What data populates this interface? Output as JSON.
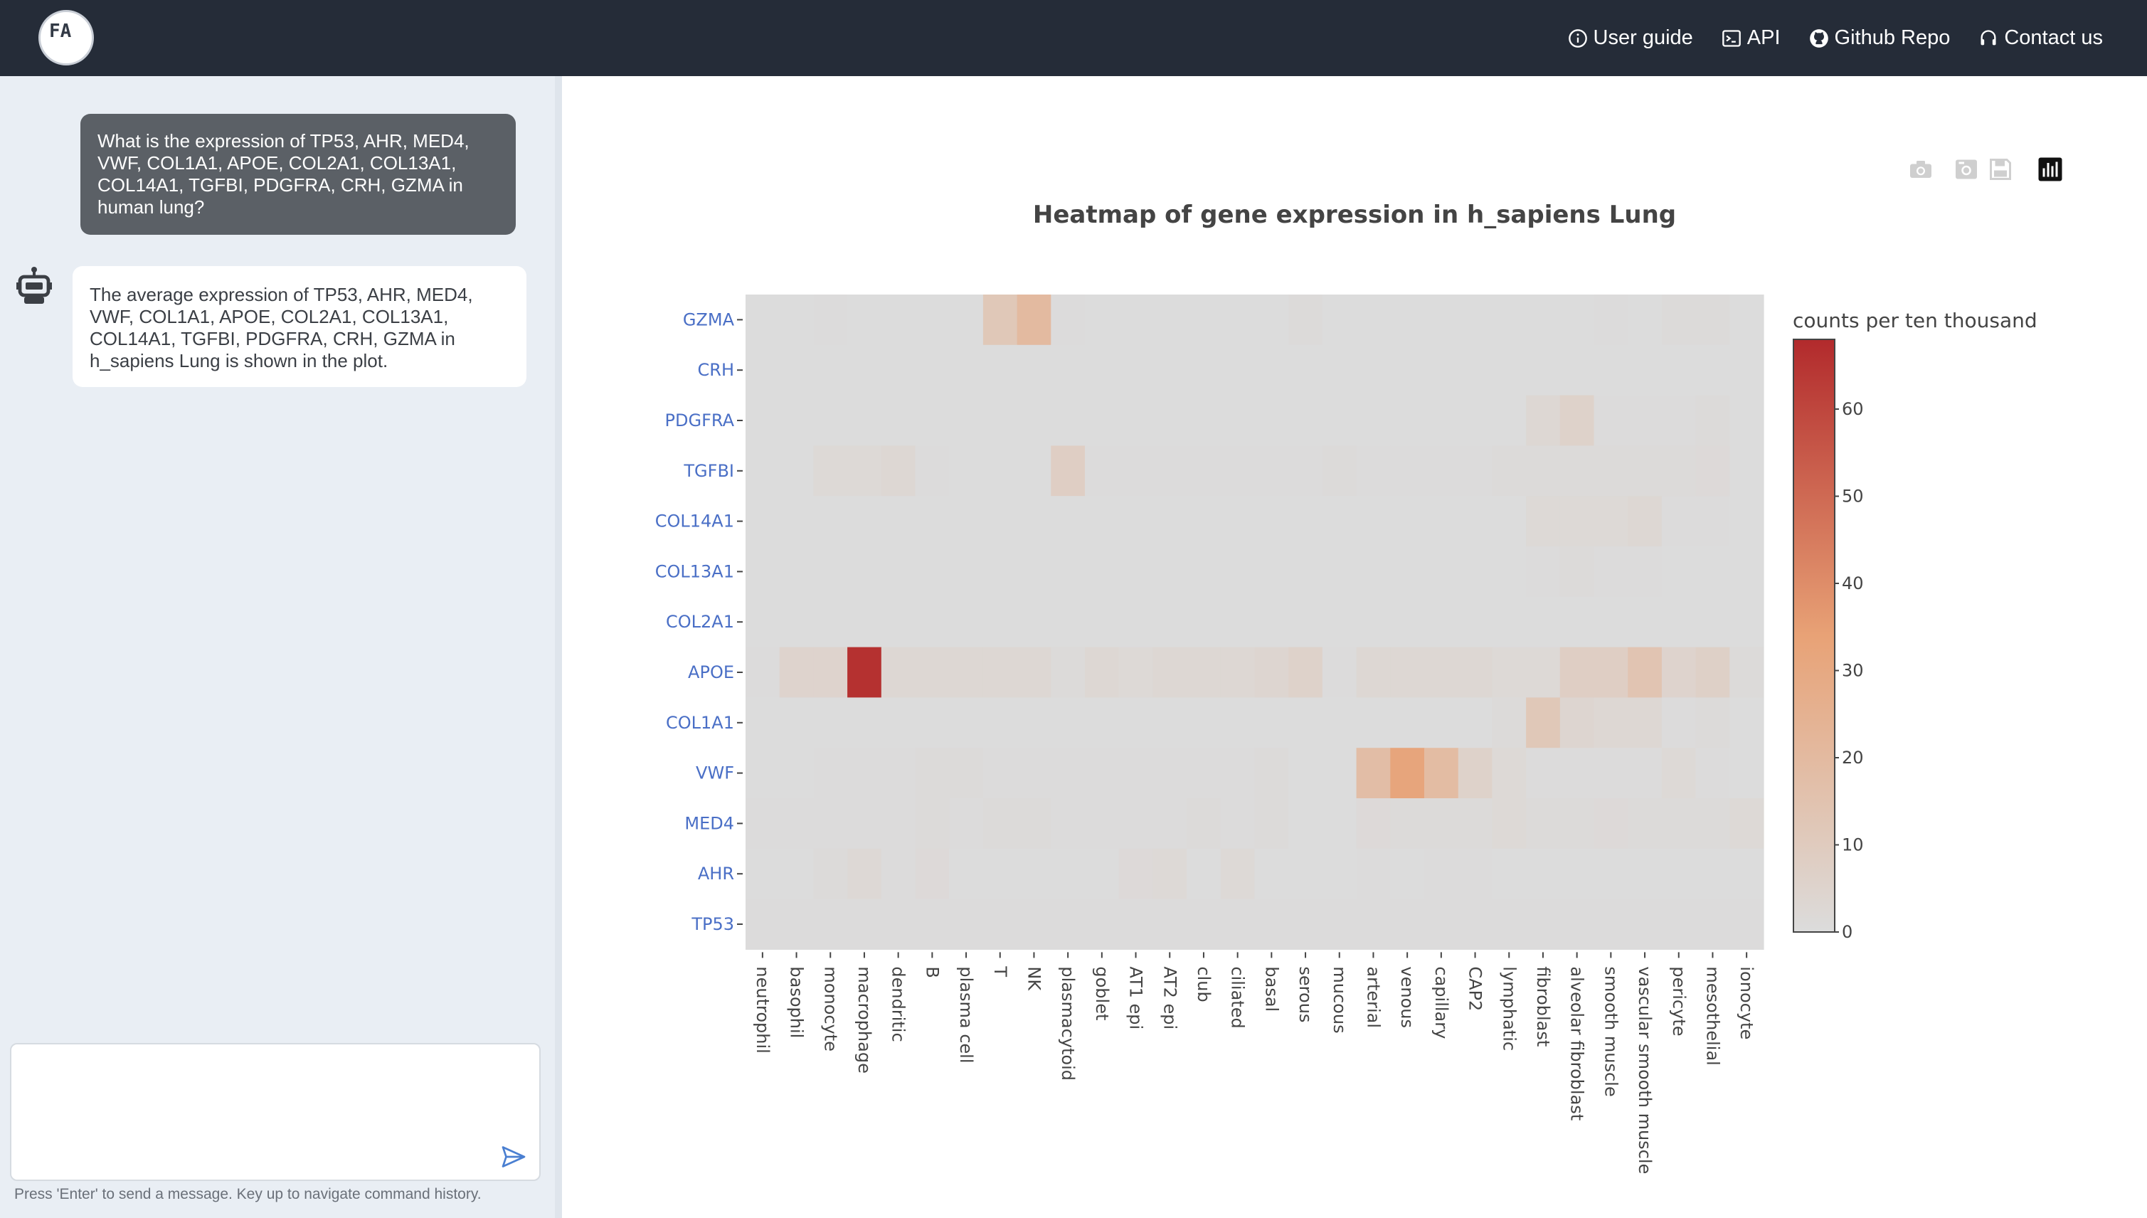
{
  "navbar": {
    "logo_text": "FA",
    "links": [
      {
        "label": "User guide",
        "icon": "info-circle-icon"
      },
      {
        "label": "API",
        "icon": "terminal-icon"
      },
      {
        "label": "Github Repo",
        "icon": "github-icon"
      },
      {
        "label": "Contact us",
        "icon": "headset-icon"
      }
    ]
  },
  "chat": {
    "user_message": "What is the expression of TP53, AHR, MED4, VWF, COL1A1, APOE, COL2A1, COL13A1, COL14A1, TGFBI, PDGFRA, CRH, GZMA in human lung?",
    "bot_message": "The average expression of TP53, AHR, MED4, VWF, COL1A1, APOE, COL2A1, COL13A1, COL14A1, TGFBI, PDGFRA, CRH, GZMA in h_sapiens Lung is shown in the plot.",
    "input_value": "",
    "input_placeholder": "",
    "hint": "Press 'Enter' to send a message. Key up to navigate command history."
  },
  "toolbar": {
    "tools": [
      "camera-icon",
      "camera-alt-icon",
      "save-icon",
      "bar-chart-icon"
    ]
  },
  "chart_data": {
    "type": "heatmap",
    "title": "Heatmap of gene expression in h_sapiens Lung",
    "colorbar_title": "counts per ten thousand",
    "colorscale": [
      "#dcdcdc",
      "#e8a276",
      "#b22a2c"
    ],
    "zmin": 0,
    "zmax": 68,
    "colorbar_ticks": [
      0,
      10,
      20,
      30,
      40,
      50,
      60
    ],
    "x": [
      "neutrophil",
      "basophil",
      "monocyte",
      "macrophage",
      "dendritic",
      "B",
      "plasma cell",
      "T",
      "NK",
      "plasmacytoid",
      "goblet",
      "AT1 epi",
      "AT2 epi",
      "club",
      "ciliated",
      "basal",
      "serous",
      "mucous",
      "arterial",
      "venous",
      "capillary",
      "CAP2",
      "lymphatic",
      "fibroblast",
      "alveolar fibroblast",
      "smooth muscle",
      "vascular smooth muscle",
      "pericyte",
      "mesothelial",
      "ionocyte"
    ],
    "y": [
      "GZMA",
      "CRH",
      "PDGFRA",
      "TGFBI",
      "COL14A1",
      "COL13A1",
      "COL2A1",
      "APOE",
      "COL1A1",
      "VWF",
      "MED4",
      "AHR",
      "TP53"
    ],
    "z": [
      [
        0,
        0,
        0.3,
        0,
        0,
        0,
        0,
        12,
        20,
        0.5,
        0,
        0,
        0,
        0,
        0,
        0,
        1,
        0,
        0,
        0,
        0,
        0,
        0,
        0,
        0,
        0.5,
        0,
        1,
        1,
        0
      ],
      [
        0,
        0,
        0,
        0,
        0,
        0,
        0,
        0,
        0,
        0,
        0,
        0,
        0,
        0,
        0,
        0,
        0,
        0,
        0,
        0,
        0,
        0,
        0,
        0,
        0,
        0,
        0,
        0,
        0,
        0
      ],
      [
        0,
        0,
        0,
        0,
        0,
        0,
        0,
        0,
        0,
        0,
        0,
        0,
        0,
        0,
        0,
        0,
        0,
        0,
        0,
        0,
        0,
        0,
        0,
        3,
        6,
        0.5,
        0.5,
        0.5,
        1,
        0
      ],
      [
        0,
        0,
        2,
        2,
        3,
        0.5,
        0,
        0,
        0,
        8,
        0.5,
        0.5,
        0.5,
        0.5,
        0.5,
        0.5,
        0.5,
        1,
        0.5,
        0.5,
        0.5,
        0.5,
        1,
        1,
        1,
        1,
        1,
        1,
        1.5,
        0
      ],
      [
        0,
        0,
        0,
        0,
        0,
        0,
        0,
        0,
        0,
        0,
        0,
        0,
        0,
        0,
        0,
        0,
        0,
        0,
        0,
        0,
        0,
        0,
        0,
        2,
        2,
        2,
        3,
        0.5,
        0.5,
        0
      ],
      [
        0,
        0,
        0,
        0,
        0,
        0,
        0,
        0,
        0,
        0,
        0,
        0,
        0,
        0,
        0,
        0,
        0,
        0,
        0,
        0,
        0,
        0,
        0,
        0.5,
        1,
        0.5,
        0.5,
        0,
        0,
        0
      ],
      [
        0,
        0,
        0,
        0,
        0,
        0,
        0,
        0,
        0,
        0,
        0,
        0,
        0,
        0,
        0,
        0,
        0,
        0,
        0,
        0,
        0,
        0,
        0,
        0,
        0,
        0,
        0,
        0,
        0,
        0
      ],
      [
        0.5,
        5,
        5,
        66,
        3,
        3,
        3,
        3,
        3,
        1,
        3,
        2,
        3,
        3,
        3,
        4,
        6,
        0.5,
        3,
        3,
        3,
        3,
        2,
        2,
        8,
        8,
        14,
        5,
        7,
        1
      ],
      [
        0,
        0,
        0,
        0,
        0,
        0,
        0,
        0,
        0,
        0,
        0,
        0,
        0,
        0,
        0,
        0,
        0,
        0,
        0,
        0,
        0,
        0,
        1,
        12,
        4,
        3,
        3,
        0.5,
        1,
        0
      ],
      [
        0,
        0,
        0.5,
        0.5,
        0.5,
        1,
        1,
        0.5,
        0.5,
        0.5,
        0.5,
        0.5,
        0.5,
        0.5,
        0.5,
        1,
        0,
        0,
        18,
        32,
        19,
        6,
        2,
        0.5,
        0.5,
        0.5,
        0.5,
        2,
        0.5,
        0
      ],
      [
        0.5,
        0.5,
        0.5,
        0.5,
        0.5,
        1,
        0.5,
        1,
        1,
        0.5,
        0.5,
        0.5,
        0.5,
        1,
        0.5,
        1,
        0,
        0,
        1.5,
        1,
        1,
        1,
        2,
        1,
        1,
        1.5,
        1,
        1,
        1,
        2
      ],
      [
        0,
        0,
        1,
        2.5,
        0.5,
        1.5,
        0,
        0,
        0,
        0,
        0,
        1.5,
        2,
        0,
        2,
        0,
        0,
        0,
        0.5,
        0,
        0.5,
        0.5,
        0,
        0,
        0,
        0,
        0,
        0,
        0,
        0
      ],
      [
        0.5,
        0.5,
        0.5,
        0.5,
        0.5,
        0.5,
        0.5,
        0.5,
        0.5,
        0.5,
        0.5,
        0.5,
        0.5,
        0.5,
        0.5,
        0.5,
        0.5,
        0.5,
        0.5,
        0.5,
        0.5,
        0.5,
        0.5,
        0.5,
        0.5,
        0.5,
        0.5,
        0.5,
        0.5,
        0.5
      ]
    ]
  }
}
